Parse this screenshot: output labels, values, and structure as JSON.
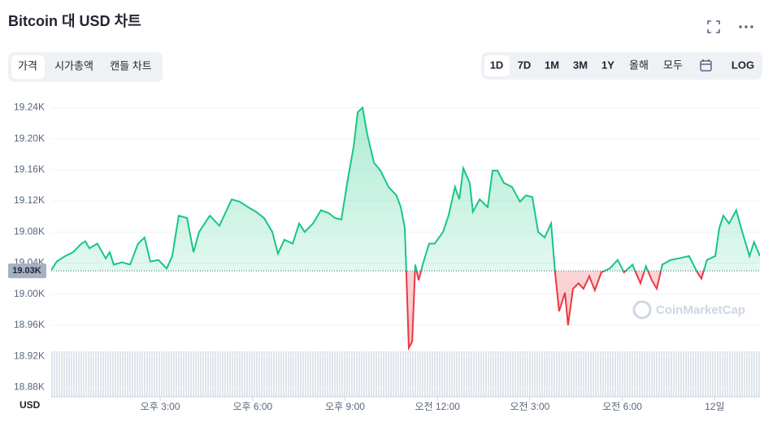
{
  "chart_data": {
    "type": "line",
    "title": "Bitcoin 대 USD 차트",
    "tabs": [
      "가격",
      "시가총액",
      "캔들 차트"
    ],
    "ranges": [
      "1D",
      "7D",
      "1M",
      "3M",
      "1Y",
      "올해",
      "모두",
      "LOG"
    ],
    "watermark": "CoinMarketCap",
    "y_label": "USD",
    "color_up": "#16c784",
    "color_down": "#ea3943",
    "grid": true,
    "baseline": {
      "value": 19030,
      "label": "19.03K"
    },
    "xlim": [
      11.46,
      34.47
    ],
    "ylim": [
      18868,
      19255
    ],
    "xticks": [
      {
        "value": 15,
        "label": "오후 3:00"
      },
      {
        "value": 18,
        "label": "오후 6:00"
      },
      {
        "value": 21,
        "label": "오후 9:00"
      },
      {
        "value": 24,
        "label": "오전 12:00"
      },
      {
        "value": 27,
        "label": "오전 3:00"
      },
      {
        "value": 30,
        "label": "오전 6:00"
      },
      {
        "value": 33,
        "label": "12일"
      }
    ],
    "yticks": [
      {
        "value": 19240,
        "label": "19.24K"
      },
      {
        "value": 19200,
        "label": "19.20K"
      },
      {
        "value": 19160,
        "label": "19.16K"
      },
      {
        "value": 19120,
        "label": "19.12K"
      },
      {
        "value": 19080,
        "label": "19.08K"
      },
      {
        "value": 19040,
        "label": "19.04K"
      },
      {
        "value": 19000,
        "label": "19.00K"
      },
      {
        "value": 18960,
        "label": "18.96K"
      },
      {
        "value": 18920,
        "label": "18.92K"
      },
      {
        "value": 18880,
        "label": "18.88K"
      }
    ],
    "x": [
      11.46,
      11.64,
      11.91,
      12.17,
      12.44,
      12.57,
      12.7,
      12.96,
      13.23,
      13.36,
      13.49,
      13.76,
      14.02,
      14.28,
      14.49,
      14.68,
      14.94,
      15.21,
      15.39,
      15.6,
      15.87,
      16.08,
      16.26,
      16.61,
      16.92,
      17.32,
      17.58,
      17.85,
      18.11,
      18.37,
      18.64,
      18.82,
      19.03,
      19.3,
      19.51,
      19.69,
      19.96,
      20.22,
      20.48,
      20.67,
      20.88,
      21.09,
      21.28,
      21.41,
      21.57,
      21.72,
      21.94,
      22.15,
      22.41,
      22.67,
      22.81,
      22.94,
      22.99,
      23.07,
      23.18,
      23.28,
      23.39,
      23.52,
      23.73,
      23.91,
      24.18,
      24.36,
      24.57,
      24.71,
      24.84,
      25.05,
      25.15,
      25.37,
      25.63,
      25.79,
      25.95,
      26.16,
      26.42,
      26.68,
      26.87,
      27.08,
      27.27,
      27.48,
      27.69,
      27.82,
      27.95,
      28.14,
      28.24,
      28.4,
      28.58,
      28.74,
      28.93,
      29.11,
      29.32,
      29.59,
      29.85,
      30.06,
      30.33,
      30.59,
      30.77,
      30.96,
      31.12,
      31.3,
      31.57,
      31.83,
      32.17,
      32.44,
      32.57,
      32.75,
      33.02,
      33.15,
      33.28,
      33.47,
      33.7,
      33.86,
      34.13,
      34.28,
      34.47
    ],
    "values": [
      19031,
      19042,
      19049,
      19054,
      19065,
      19068,
      19059,
      19065,
      19046,
      19054,
      19038,
      19041,
      19038,
      19065,
      19073,
      19042,
      19044,
      19033,
      19049,
      19101,
      19098,
      19054,
      19080,
      19101,
      19088,
      19122,
      19119,
      19112,
      19106,
      19098,
      19080,
      19052,
      19070,
      19065,
      19091,
      19080,
      19091,
      19108,
      19104,
      19098,
      19096,
      19148,
      19190,
      19234,
      19240,
      19206,
      19169,
      19159,
      19138,
      19127,
      19112,
      19085,
      19028,
      18931,
      18939,
      19038,
      19018,
      19038,
      19065,
      19065,
      19080,
      19101,
      19138,
      19122,
      19162,
      19143,
      19106,
      19122,
      19112,
      19159,
      19159,
      19143,
      19138,
      19119,
      19127,
      19125,
      19080,
      19073,
      19091,
      19028,
      18978,
      19002,
      18960,
      19007,
      19014,
      19007,
      19023,
      19005,
      19028,
      19033,
      19044,
      19028,
      19038,
      19014,
      19036,
      19018,
      19007,
      19038,
      19044,
      19046,
      19049,
      19028,
      19020,
      19044,
      19049,
      19085,
      19101,
      19091,
      19108,
      19085,
      19049,
      19067,
      19049
    ]
  }
}
